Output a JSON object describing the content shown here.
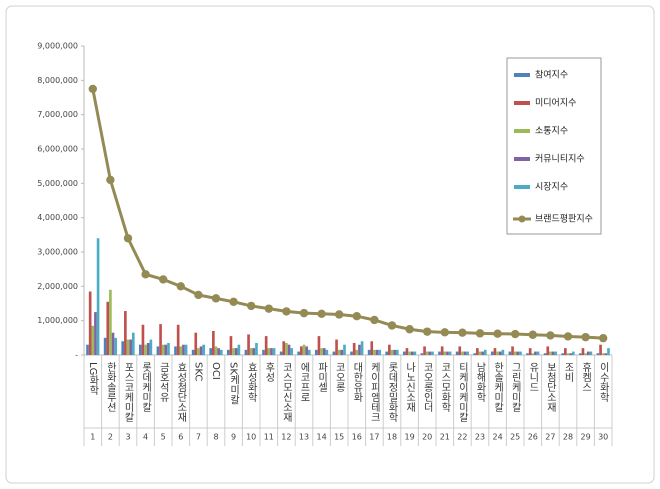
{
  "chart_data": {
    "type": "bar",
    "categories": [
      "LG화학",
      "한화솔루션",
      "포스코케미칼",
      "롯데케미칼",
      "금호석유",
      "효성첨단소재",
      "SKC",
      "OCI",
      "SK케미칼",
      "효성화학",
      "후성",
      "코스모신소재",
      "에코프로",
      "파미셀",
      "코오롱",
      "대한유화",
      "케이피엠테크",
      "롯데정밀화학",
      "나노신소재",
      "코오롱인더",
      "코스모화학",
      "티케이케미칼",
      "남해화학",
      "한솔케미칼",
      "그린케미칼",
      "유니드",
      "보첨단소재",
      "조비",
      "휴켐스",
      "이수화학"
    ],
    "ranks": [
      1,
      2,
      3,
      4,
      5,
      6,
      7,
      8,
      9,
      10,
      11,
      12,
      13,
      14,
      15,
      16,
      17,
      18,
      19,
      20,
      21,
      22,
      23,
      24,
      25,
      26,
      27,
      28,
      29,
      30
    ],
    "series": [
      {
        "name": "참여지수",
        "color": "#4f81bd",
        "values": [
          300000,
          500000,
          400000,
          300000,
          250000,
          250000,
          150000,
          200000,
          150000,
          150000,
          150000,
          100000,
          100000,
          150000,
          100000,
          100000,
          150000,
          100000,
          100000,
          50000,
          100000,
          100000,
          50000,
          100000,
          100000,
          50000,
          50000,
          50000,
          50000,
          50000
        ]
      },
      {
        "name": "미디어지수",
        "color": "#c0504d",
        "values": [
          1850000,
          1550000,
          1280000,
          880000,
          900000,
          880000,
          650000,
          700000,
          550000,
          600000,
          550000,
          400000,
          250000,
          550000,
          450000,
          350000,
          400000,
          300000,
          200000,
          250000,
          250000,
          250000,
          200000,
          200000,
          250000,
          200000,
          250000,
          200000,
          200000,
          300000
        ]
      },
      {
        "name": "소통지수",
        "color": "#9bbb59",
        "values": [
          850000,
          1900000,
          450000,
          300000,
          300000,
          250000,
          200000,
          250000,
          200000,
          200000,
          200000,
          350000,
          300000,
          200000,
          150000,
          150000,
          150000,
          150000,
          100000,
          100000,
          100000,
          100000,
          100000,
          100000,
          100000,
          50000,
          100000,
          50000,
          50000,
          50000
        ]
      },
      {
        "name": "커뮤니티지수",
        "color": "#8064a2",
        "values": [
          1250000,
          650000,
          450000,
          350000,
          300000,
          300000,
          250000,
          200000,
          200000,
          200000,
          200000,
          300000,
          250000,
          200000,
          150000,
          300000,
          150000,
          150000,
          100000,
          100000,
          100000,
          100000,
          100000,
          100000,
          100000,
          100000,
          100000,
          50000,
          100000,
          50000
        ]
      },
      {
        "name": "시장지수",
        "color": "#4bacc6",
        "values": [
          3400000,
          500000,
          650000,
          450000,
          350000,
          300000,
          300000,
          150000,
          300000,
          350000,
          200000,
          200000,
          150000,
          150000,
          300000,
          400000,
          150000,
          150000,
          100000,
          100000,
          100000,
          100000,
          150000,
          150000,
          100000,
          100000,
          100000,
          100000,
          100000,
          200000
        ]
      },
      {
        "name": "브랜드평판지수",
        "color": "#948a54",
        "type": "line",
        "values": [
          7750000,
          5100000,
          3400000,
          2350000,
          2200000,
          2000000,
          1750000,
          1650000,
          1550000,
          1430000,
          1350000,
          1270000,
          1220000,
          1200000,
          1180000,
          1130000,
          1020000,
          860000,
          750000,
          680000,
          660000,
          650000,
          630000,
          620000,
          610000,
          590000,
          570000,
          540000,
          520000,
          490000
        ]
      }
    ],
    "ylim": [
      0,
      9000000
    ],
    "yticks": [
      {
        "value": 0,
        "label": "-"
      },
      {
        "value": 1000000,
        "label": "1,000,000"
      },
      {
        "value": 2000000,
        "label": "2,000,000"
      },
      {
        "value": 3000000,
        "label": "3,000,000"
      },
      {
        "value": 4000000,
        "label": "4,000,000"
      },
      {
        "value": 5000000,
        "label": "5,000,000"
      },
      {
        "value": 6000000,
        "label": "6,000,000"
      },
      {
        "value": 7000000,
        "label": "7,000,000"
      },
      {
        "value": 8000000,
        "label": "8,000,000"
      },
      {
        "value": 9000000,
        "label": "9,000,000"
      }
    ]
  }
}
